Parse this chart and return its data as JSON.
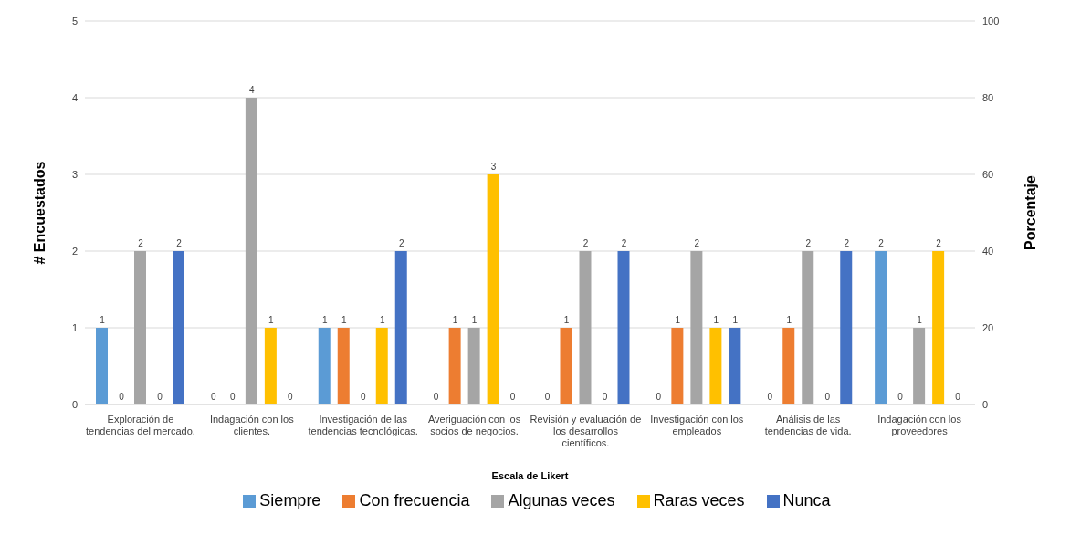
{
  "chart_data": {
    "type": "bar",
    "xlabel": "Escala de Likert",
    "ylabel": "# Encuestados",
    "y2label": "Porcentaje",
    "categories": [
      "Exploración de tendencias del mercado.",
      "Indagación con los clientes.",
      "Investigación de las tendencias tecnológicas.",
      "Averiguación con los socios de negocios.",
      "Revisión y evaluación de los desarrollos científicos.",
      "Investigación con los empleados",
      "Análisis de las tendencias de vida.",
      "Indagación con los proveedores"
    ],
    "series": [
      {
        "name": "Siempre",
        "color": "#5b9bd5",
        "values": [
          1,
          0,
          1,
          0,
          0,
          0,
          0,
          2
        ]
      },
      {
        "name": "Con frecuencia",
        "color": "#ed7d31",
        "values": [
          0,
          0,
          1,
          1,
          1,
          1,
          1,
          0
        ]
      },
      {
        "name": "Algunas veces",
        "color": "#a5a5a5",
        "values": [
          2,
          4,
          0,
          1,
          2,
          2,
          2,
          1
        ]
      },
      {
        "name": "Raras veces",
        "color": "#ffc000",
        "values": [
          0,
          1,
          1,
          3,
          0,
          1,
          0,
          2
        ]
      },
      {
        "name": "Nunca",
        "color": "#4472c4",
        "values": [
          2,
          0,
          2,
          0,
          2,
          1,
          2,
          0
        ]
      }
    ],
    "ylim": [
      0,
      5
    ],
    "yticks": [
      0,
      1,
      2,
      3,
      4,
      5
    ],
    "y2lim": [
      0,
      100
    ],
    "y2ticks": [
      0,
      20,
      40,
      60,
      80,
      100
    ],
    "grid": "y",
    "legend": "bottom",
    "data_labels": true
  }
}
